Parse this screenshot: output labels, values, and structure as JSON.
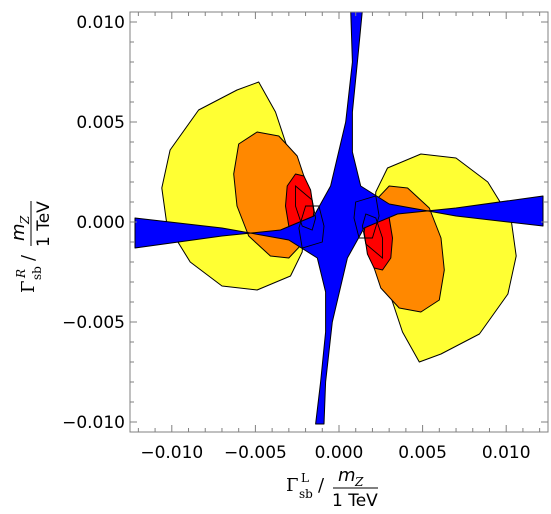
{
  "chart_data": {
    "type": "area",
    "title": "",
    "xlim": [
      -0.0125,
      0.0125
    ],
    "ylim": [
      -0.0105,
      0.0105
    ],
    "x_ticks": [
      "−0.010",
      "−0.005",
      "0.000",
      "0.005",
      "0.010"
    ],
    "y_ticks": [
      "0.010",
      "0.005",
      "0.000",
      "−0.005",
      "−0.010"
    ],
    "x_tick_values": [
      -0.01,
      -0.005,
      0.0,
      0.005,
      0.01
    ],
    "y_tick_values": [
      0.01,
      0.005,
      0.0,
      -0.005,
      -0.01
    ],
    "xlabel": {
      "gamma": "Γ",
      "sub": "sb",
      "sup": "L",
      "slash": "/",
      "numerator": "m",
      "numerator_sub": "Z",
      "denominator": "1 TeV"
    },
    "ylabel": {
      "gamma": "Γ",
      "sub": "sb",
      "sup": "R",
      "slash": "/",
      "numerator": "m",
      "numerator_sub": "Z",
      "denominator": "1 TeV"
    },
    "grid": false,
    "legend": "none",
    "colors": {
      "yellow": "#ffff33",
      "orange": "#ff8800",
      "red": "#ff0000",
      "blue": "#0000ff"
    },
    "regions": [
      {
        "color": "yellow",
        "polygons": [
          [
            [
              -0.0048,
              0.007
            ],
            [
              -0.0061,
              0.0066
            ],
            [
              -0.0084,
              0.0056
            ],
            [
              -0.0101,
              0.0036
            ],
            [
              -0.0106,
              0.0017
            ],
            [
              -0.0103,
              -0.0001
            ],
            [
              -0.0089,
              -0.002
            ],
            [
              -0.007,
              -0.0032
            ],
            [
              -0.0049,
              -0.0034
            ],
            [
              -0.0029,
              -0.0027
            ],
            [
              -0.0022,
              -0.0015
            ],
            [
              -0.0021,
              0.0
            ],
            [
              -0.0025,
              0.0015
            ],
            [
              -0.003,
              0.0035
            ],
            [
              -0.0038,
              0.0055
            ]
          ],
          [
            [
              0.0048,
              -0.007
            ],
            [
              0.0061,
              -0.0066
            ],
            [
              0.0084,
              -0.0056
            ],
            [
              0.0101,
              -0.0036
            ],
            [
              0.0106,
              -0.0017
            ],
            [
              0.0103,
              0.0001
            ],
            [
              0.0089,
              0.002
            ],
            [
              0.007,
              0.0032
            ],
            [
              0.0049,
              0.0034
            ],
            [
              0.0029,
              0.0027
            ],
            [
              0.0022,
              0.0015
            ],
            [
              0.0021,
              0.0
            ],
            [
              0.0025,
              -0.0015
            ],
            [
              0.003,
              -0.0035
            ],
            [
              0.0038,
              -0.0055
            ]
          ]
        ]
      },
      {
        "color": "orange",
        "polygons": [
          [
            [
              -0.0049,
              0.0045
            ],
            [
              -0.006,
              0.0039
            ],
            [
              -0.0063,
              0.0024
            ],
            [
              -0.0061,
              0.0008
            ],
            [
              -0.0054,
              -0.0007
            ],
            [
              -0.0041,
              -0.0017
            ],
            [
              -0.003,
              -0.0018
            ],
            [
              -0.0021,
              -0.001
            ],
            [
              -0.0018,
              0.0003
            ],
            [
              -0.0019,
              0.0018
            ],
            [
              -0.0025,
              0.0033
            ],
            [
              -0.0036,
              0.0043
            ]
          ],
          [
            [
              0.0049,
              -0.0045
            ],
            [
              0.006,
              -0.0039
            ],
            [
              0.0063,
              -0.0024
            ],
            [
              0.0061,
              -0.0008
            ],
            [
              0.0054,
              0.0007
            ],
            [
              0.0041,
              0.0017
            ],
            [
              0.003,
              0.0018
            ],
            [
              0.0021,
              0.001
            ],
            [
              0.0018,
              -0.0003
            ],
            [
              0.0019,
              -0.0018
            ],
            [
              0.0025,
              -0.0033
            ],
            [
              0.0036,
              -0.0043
            ]
          ]
        ]
      },
      {
        "color": "red",
        "polygons": [
          [
            [
              -0.0026,
              0.0024
            ],
            [
              -0.0031,
              0.0018
            ],
            [
              -0.0032,
              0.0008
            ],
            [
              -0.003,
              -0.0002
            ],
            [
              -0.0024,
              -0.0007
            ],
            [
              -0.0017,
              -0.0005
            ],
            [
              -0.0015,
              0.0005
            ],
            [
              -0.0017,
              0.0016
            ],
            [
              -0.0021,
              0.0023
            ]
          ],
          [
            [
              0.0026,
              -0.0024
            ],
            [
              0.0031,
              -0.0018
            ],
            [
              0.0032,
              -0.0008
            ],
            [
              0.003,
              0.0002
            ],
            [
              0.0024,
              0.0007
            ],
            [
              0.0017,
              0.0005
            ],
            [
              0.0015,
              -0.0005
            ],
            [
              0.0017,
              -0.0016
            ],
            [
              0.0021,
              -0.0023
            ]
          ]
        ]
      },
      {
        "color": "blue",
        "polygons": [
          [
            [
              0.0007,
              0.0106
            ],
            [
              0.0014,
              0.0106
            ],
            [
              0.0011,
              0.008
            ],
            [
              0.0008,
              0.0055
            ],
            [
              0.0008,
              0.0035
            ],
            [
              0.0013,
              0.0018
            ],
            [
              0.003,
              0.0009
            ],
            [
              0.007,
              0.0003
            ],
            [
              0.0122,
              -0.0002
            ],
            [
              0.0122,
              0.0013
            ],
            [
              0.007,
              0.0007
            ],
            [
              0.0035,
              0.0004
            ],
            [
              0.0015,
              -0.0003
            ],
            [
              0.0005,
              -0.0018
            ],
            [
              -0.0004,
              -0.005
            ],
            [
              -0.0008,
              -0.008
            ],
            [
              -0.0009,
              -0.0101
            ],
            [
              -0.0014,
              -0.0101
            ],
            [
              -0.0011,
              -0.008
            ],
            [
              -0.0008,
              -0.0055
            ],
            [
              -0.0008,
              -0.0035
            ],
            [
              -0.0013,
              -0.0018
            ],
            [
              -0.003,
              -0.0009
            ],
            [
              -0.007,
              -0.0003
            ],
            [
              -0.0122,
              0.0002
            ],
            [
              -0.0122,
              -0.0013
            ],
            [
              -0.007,
              -0.0007
            ],
            [
              -0.0035,
              -0.0004
            ],
            [
              -0.0015,
              0.0003
            ],
            [
              -0.0005,
              0.0018
            ],
            [
              0.0004,
              0.005
            ],
            [
              0.0008,
              0.008
            ]
          ]
        ]
      }
    ],
    "outlines": [
      [
        [
          -0.0026,
          0.0018
        ],
        [
          -0.0016,
          0.0011
        ],
        [
          -0.0014,
          0.0002
        ],
        [
          -0.0016,
          -0.0004
        ],
        [
          -0.0022,
          -0.0002
        ],
        [
          -0.0026,
          0.0008
        ]
      ],
      [
        [
          0.0026,
          -0.0018
        ],
        [
          0.0016,
          -0.0011
        ],
        [
          0.0014,
          -0.0002
        ],
        [
          0.0016,
          0.0004
        ],
        [
          0.0022,
          0.0002
        ],
        [
          0.0026,
          -0.0008
        ]
      ],
      [
        [
          0.001,
          0.001
        ],
        [
          0.0022,
          0.0013
        ],
        [
          0.0024,
          0.0003
        ],
        [
          0.002,
          -0.0008
        ],
        [
          0.0012,
          -0.0008
        ],
        [
          0.0009,
          0.0002
        ]
      ],
      [
        [
          -0.001,
          -0.001
        ],
        [
          -0.0022,
          -0.0013
        ],
        [
          -0.0024,
          -0.0003
        ],
        [
          -0.002,
          0.0008
        ],
        [
          -0.0012,
          0.0008
        ],
        [
          -0.0009,
          -0.0002
        ]
      ]
    ]
  }
}
